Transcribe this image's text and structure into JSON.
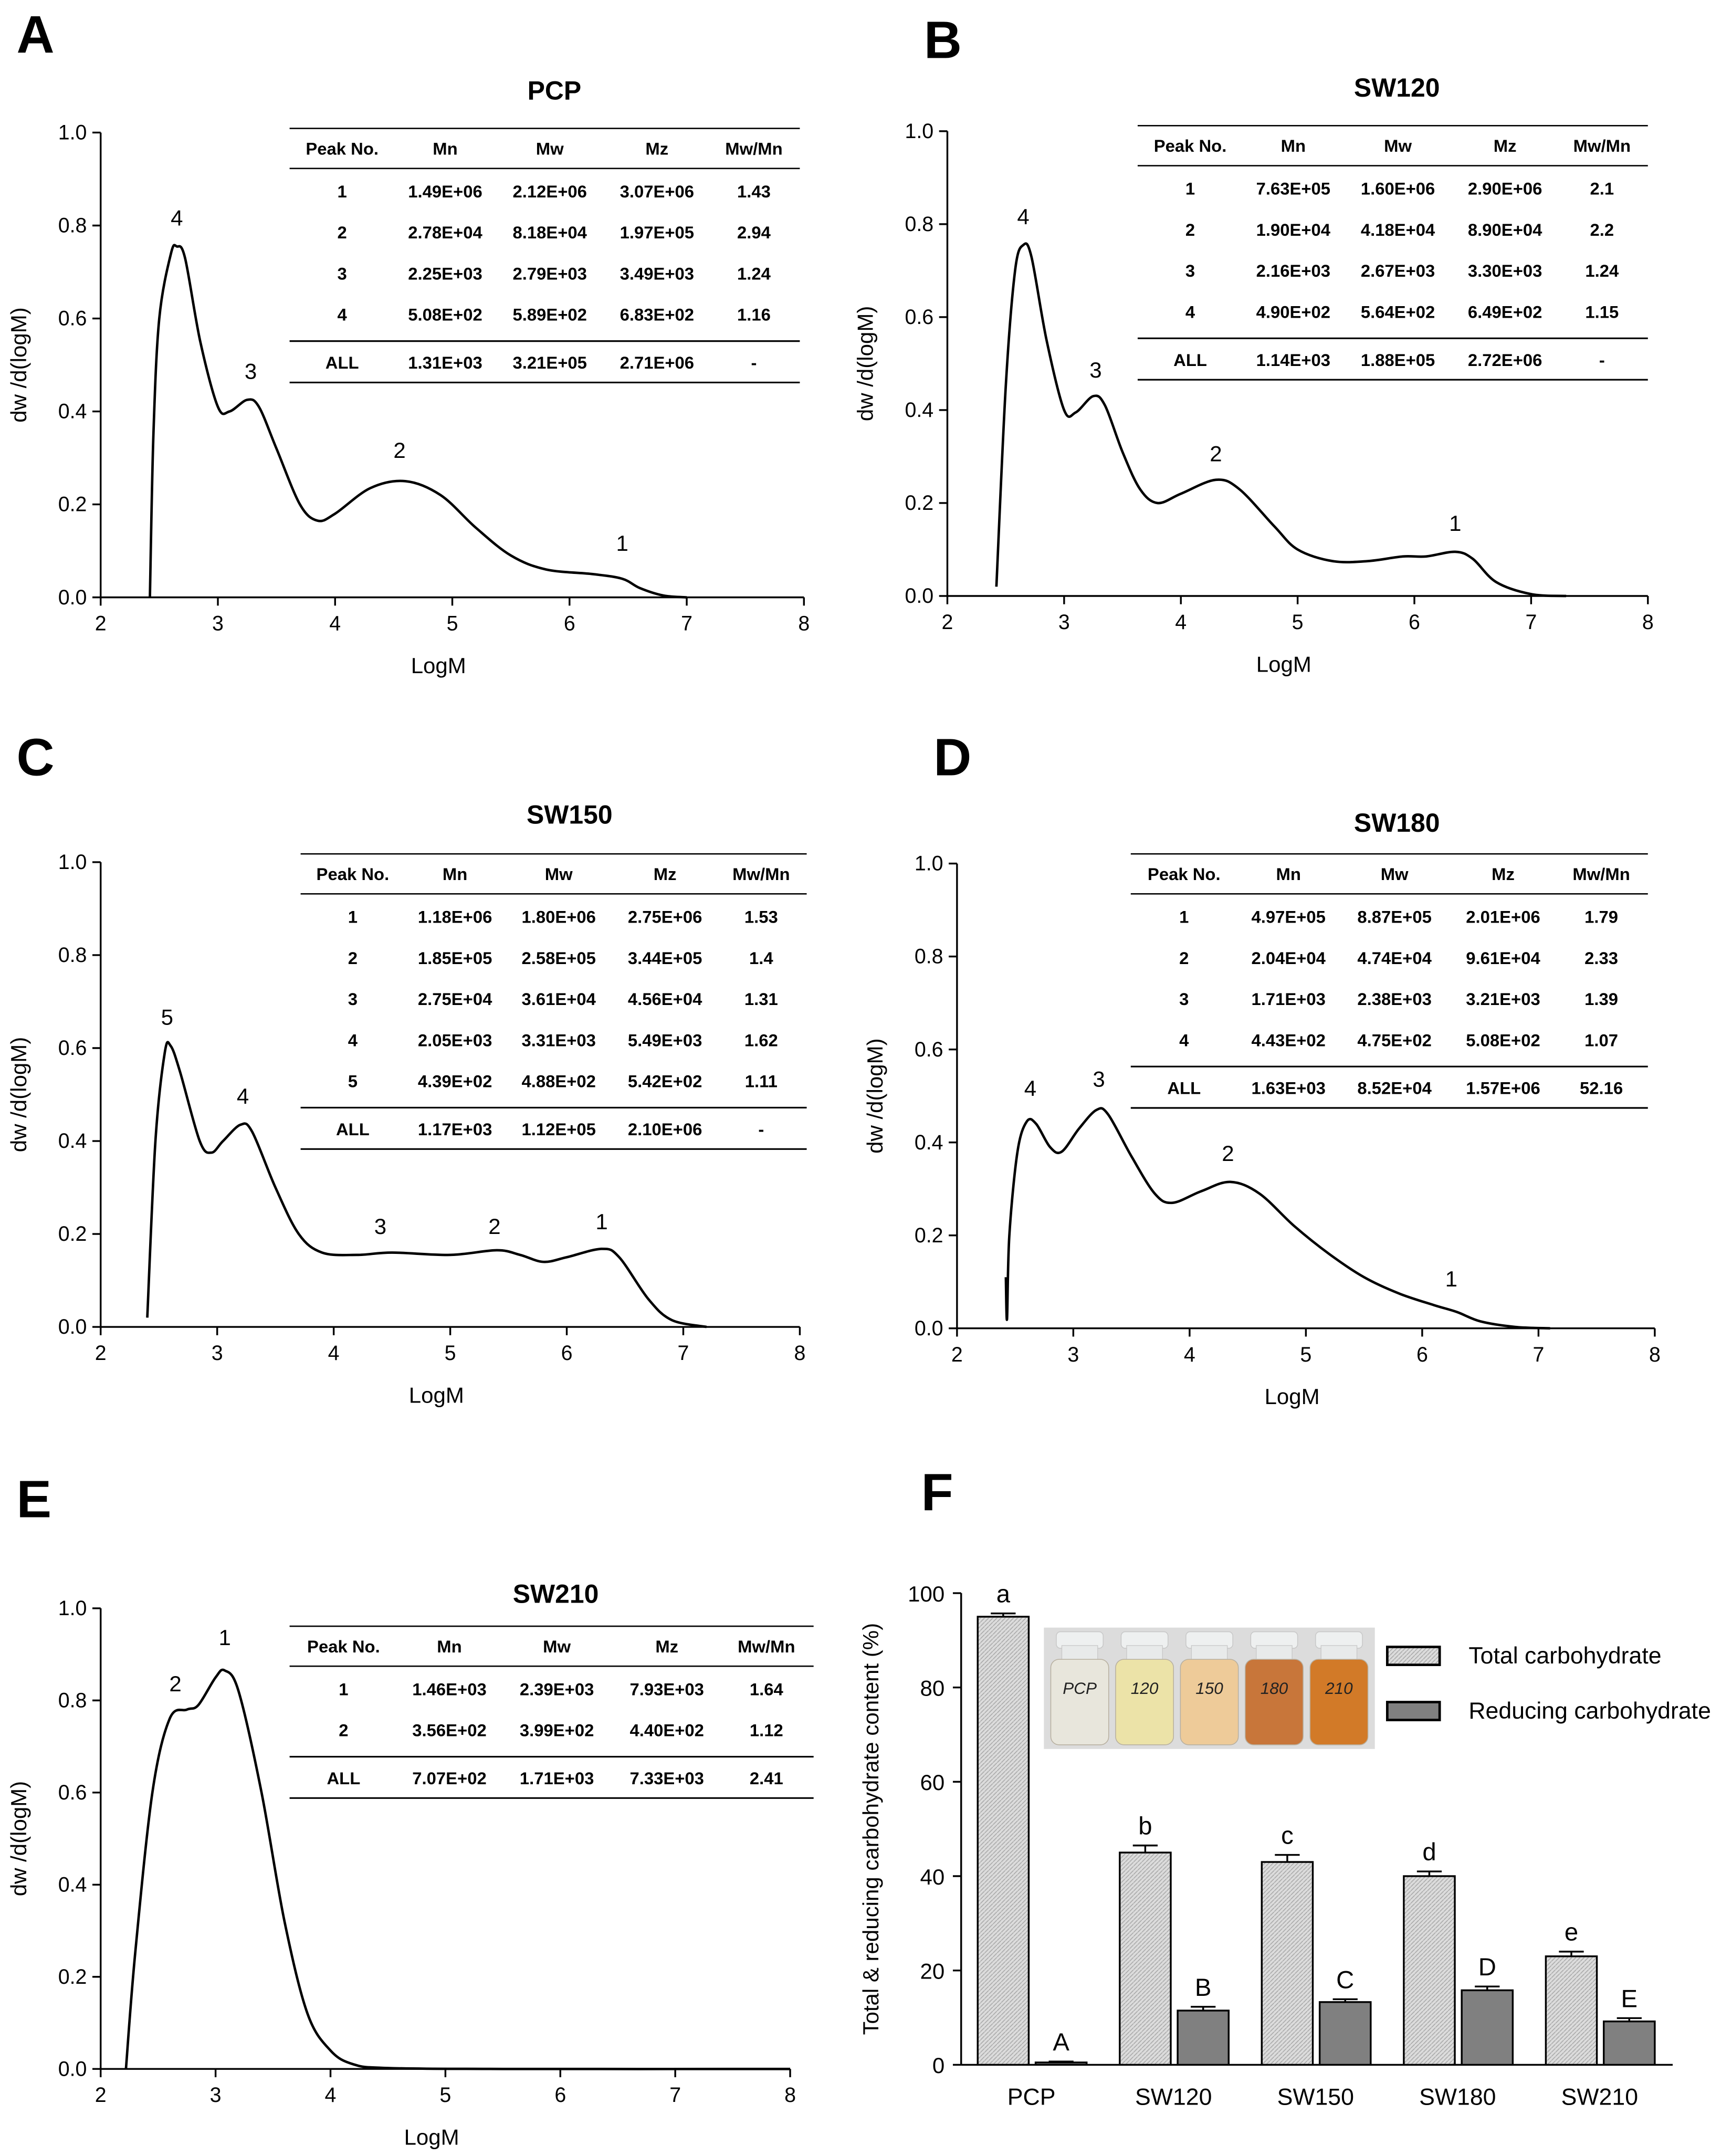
{
  "chart_data": [
    {
      "panel": "A",
      "type": "line",
      "title": "PCP",
      "xlabel": "LogM",
      "ylabel": "dw /d(logM)",
      "xlim": [
        2,
        8
      ],
      "ylim": [
        0,
        1.0
      ],
      "xticks": [
        "2",
        "3",
        "4",
        "5",
        "6",
        "7",
        "8"
      ],
      "yticks": [
        "0.0",
        "0.2",
        "0.4",
        "0.6",
        "0.8",
        "1.0"
      ],
      "points": [
        [
          2.42,
          0
        ],
        [
          2.45,
          0.35
        ],
        [
          2.5,
          0.6
        ],
        [
          2.6,
          0.74
        ],
        [
          2.65,
          0.755
        ],
        [
          2.72,
          0.73
        ],
        [
          2.85,
          0.55
        ],
        [
          3.0,
          0.41
        ],
        [
          3.1,
          0.4
        ],
        [
          3.25,
          0.425
        ],
        [
          3.35,
          0.41
        ],
        [
          3.5,
          0.32
        ],
        [
          3.7,
          0.2
        ],
        [
          3.85,
          0.165
        ],
        [
          4.0,
          0.18
        ],
        [
          4.3,
          0.235
        ],
        [
          4.6,
          0.25
        ],
        [
          4.9,
          0.22
        ],
        [
          5.2,
          0.15
        ],
        [
          5.5,
          0.09
        ],
        [
          5.8,
          0.06
        ],
        [
          6.2,
          0.05
        ],
        [
          6.45,
          0.04
        ],
        [
          6.6,
          0.02
        ],
        [
          6.8,
          0.004
        ],
        [
          7.0,
          0
        ]
      ],
      "peak_labels": [
        {
          "text": "4",
          "x": 2.65,
          "y": 0.8
        },
        {
          "text": "3",
          "x": 3.28,
          "y": 0.47
        },
        {
          "text": "2",
          "x": 4.55,
          "y": 0.3
        },
        {
          "text": "1",
          "x": 6.45,
          "y": 0.1
        }
      ],
      "table": {
        "headers": [
          "Peak No.",
          "Mn",
          "Mw",
          "Mz",
          "Mw/Mn"
        ],
        "rows": [
          [
            "1",
            "1.49E+06",
            "2.12E+06",
            "3.07E+06",
            "1.43"
          ],
          [
            "2",
            "2.78E+04",
            "8.18E+04",
            "1.97E+05",
            "2.94"
          ],
          [
            "3",
            "2.25E+03",
            "2.79E+03",
            "3.49E+03",
            "1.24"
          ],
          [
            "4",
            "5.08E+02",
            "5.89E+02",
            "6.83E+02",
            "1.16"
          ]
        ],
        "total": [
          "ALL",
          "1.31E+03",
          "3.21E+05",
          "2.71E+06",
          "-"
        ]
      }
    },
    {
      "panel": "B",
      "type": "line",
      "title": "SW120",
      "xlabel": "LogM",
      "ylabel": "dw /d(logM)",
      "xlim": [
        2,
        8
      ],
      "ylim": [
        0,
        1.0
      ],
      "xticks": [
        "2",
        "3",
        "4",
        "5",
        "6",
        "7",
        "8"
      ],
      "yticks": [
        "0.0",
        "0.2",
        "0.4",
        "0.6",
        "0.8",
        "1.0"
      ],
      "points": [
        [
          2.42,
          0.02
        ],
        [
          2.5,
          0.45
        ],
        [
          2.58,
          0.7
        ],
        [
          2.65,
          0.755
        ],
        [
          2.72,
          0.73
        ],
        [
          2.85,
          0.55
        ],
        [
          3.0,
          0.4
        ],
        [
          3.1,
          0.395
        ],
        [
          3.25,
          0.43
        ],
        [
          3.35,
          0.41
        ],
        [
          3.5,
          0.31
        ],
        [
          3.65,
          0.23
        ],
        [
          3.8,
          0.2
        ],
        [
          4.0,
          0.22
        ],
        [
          4.3,
          0.25
        ],
        [
          4.5,
          0.23
        ],
        [
          4.8,
          0.15
        ],
        [
          5.0,
          0.1
        ],
        [
          5.3,
          0.075
        ],
        [
          5.6,
          0.075
        ],
        [
          5.9,
          0.085
        ],
        [
          6.1,
          0.085
        ],
        [
          6.35,
          0.095
        ],
        [
          6.5,
          0.08
        ],
        [
          6.7,
          0.03
        ],
        [
          7.0,
          0.004
        ],
        [
          7.3,
          0
        ]
      ],
      "peak_labels": [
        {
          "text": "4",
          "x": 2.65,
          "y": 0.8
        },
        {
          "text": "3",
          "x": 3.27,
          "y": 0.47
        },
        {
          "text": "2",
          "x": 4.3,
          "y": 0.29
        },
        {
          "text": "1",
          "x": 6.35,
          "y": 0.14
        }
      ],
      "table": {
        "headers": [
          "Peak No.",
          "Mn",
          "Mw",
          "Mz",
          "Mw/Mn"
        ],
        "rows": [
          [
            "1",
            "7.63E+05",
            "1.60E+06",
            "2.90E+06",
            "2.1"
          ],
          [
            "2",
            "1.90E+04",
            "4.18E+04",
            "8.90E+04",
            "2.2"
          ],
          [
            "3",
            "2.16E+03",
            "2.67E+03",
            "3.30E+03",
            "1.24"
          ],
          [
            "4",
            "4.90E+02",
            "5.64E+02",
            "6.49E+02",
            "1.15"
          ]
        ],
        "total": [
          "ALL",
          "1.14E+03",
          "1.88E+05",
          "2.72E+06",
          "-"
        ]
      }
    },
    {
      "panel": "C",
      "type": "line",
      "title": "SW150",
      "xlabel": "LogM",
      "ylabel": "dw /d(logM)",
      "xlim": [
        2,
        8
      ],
      "ylim": [
        0,
        1.0
      ],
      "xticks": [
        "2",
        "3",
        "4",
        "5",
        "6",
        "7",
        "8"
      ],
      "yticks": [
        "0.0",
        "0.2",
        "0.4",
        "0.6",
        "0.8",
        "1.0"
      ],
      "points": [
        [
          2.4,
          0.02
        ],
        [
          2.47,
          0.4
        ],
        [
          2.55,
          0.59
        ],
        [
          2.6,
          0.605
        ],
        [
          2.68,
          0.55
        ],
        [
          2.85,
          0.4
        ],
        [
          2.95,
          0.375
        ],
        [
          3.05,
          0.4
        ],
        [
          3.2,
          0.435
        ],
        [
          3.3,
          0.42
        ],
        [
          3.5,
          0.3
        ],
        [
          3.7,
          0.2
        ],
        [
          3.9,
          0.16
        ],
        [
          4.2,
          0.155
        ],
        [
          4.5,
          0.16
        ],
        [
          5.0,
          0.155
        ],
        [
          5.4,
          0.165
        ],
        [
          5.6,
          0.155
        ],
        [
          5.8,
          0.14
        ],
        [
          6.0,
          0.15
        ],
        [
          6.3,
          0.168
        ],
        [
          6.45,
          0.15
        ],
        [
          6.7,
          0.06
        ],
        [
          6.9,
          0.015
        ],
        [
          7.2,
          0
        ]
      ],
      "peak_labels": [
        {
          "text": "5",
          "x": 2.57,
          "y": 0.65
        },
        {
          "text": "4",
          "x": 3.22,
          "y": 0.48
        },
        {
          "text": "3",
          "x": 4.4,
          "y": 0.2
        },
        {
          "text": "2",
          "x": 5.38,
          "y": 0.2
        },
        {
          "text": "1",
          "x": 6.3,
          "y": 0.21
        }
      ],
      "table": {
        "headers": [
          "Peak No.",
          "Mn",
          "Mw",
          "Mz",
          "Mw/Mn"
        ],
        "rows": [
          [
            "1",
            "1.18E+06",
            "1.80E+06",
            "2.75E+06",
            "1.53"
          ],
          [
            "2",
            "1.85E+05",
            "2.58E+05",
            "3.44E+05",
            "1.4"
          ],
          [
            "3",
            "2.75E+04",
            "3.61E+04",
            "4.56E+04",
            "1.31"
          ],
          [
            "4",
            "2.05E+03",
            "3.31E+03",
            "5.49E+03",
            "1.62"
          ],
          [
            "5",
            "4.39E+02",
            "4.88E+02",
            "5.42E+02",
            "1.11"
          ]
        ],
        "total": [
          "ALL",
          "1.17E+03",
          "1.12E+05",
          "2.10E+06",
          "-"
        ]
      }
    },
    {
      "panel": "D",
      "type": "line",
      "title": "SW180",
      "xlabel": "LogM",
      "ylabel": "dw /d(logM)",
      "xlim": [
        2,
        8
      ],
      "ylim": [
        0,
        1.0
      ],
      "xticks": [
        "2",
        "3",
        "4",
        "5",
        "6",
        "7",
        "8"
      ],
      "yticks": [
        "0.0",
        "0.2",
        "0.4",
        "0.6",
        "0.8",
        "1.0"
      ],
      "points": [
        [
          2.42,
          0.11
        ],
        [
          2.43,
          0.02
        ],
        [
          2.45,
          0.2
        ],
        [
          2.52,
          0.38
        ],
        [
          2.6,
          0.445
        ],
        [
          2.68,
          0.44
        ],
        [
          2.8,
          0.39
        ],
        [
          2.9,
          0.38
        ],
        [
          3.05,
          0.43
        ],
        [
          3.2,
          0.47
        ],
        [
          3.3,
          0.46
        ],
        [
          3.5,
          0.37
        ],
        [
          3.7,
          0.29
        ],
        [
          3.85,
          0.27
        ],
        [
          4.1,
          0.295
        ],
        [
          4.35,
          0.315
        ],
        [
          4.6,
          0.29
        ],
        [
          4.9,
          0.22
        ],
        [
          5.2,
          0.16
        ],
        [
          5.5,
          0.11
        ],
        [
          5.8,
          0.075
        ],
        [
          6.1,
          0.05
        ],
        [
          6.3,
          0.035
        ],
        [
          6.5,
          0.015
        ],
        [
          6.8,
          0.003
        ],
        [
          7.1,
          0
        ]
      ],
      "peak_labels": [
        {
          "text": "4",
          "x": 2.63,
          "y": 0.5
        },
        {
          "text": "3",
          "x": 3.22,
          "y": 0.52
        },
        {
          "text": "2",
          "x": 4.33,
          "y": 0.36
        },
        {
          "text": "1",
          "x": 6.25,
          "y": 0.09
        }
      ],
      "table": {
        "headers": [
          "Peak No.",
          "Mn",
          "Mw",
          "Mz",
          "Mw/Mn"
        ],
        "rows": [
          [
            "1",
            "4.97E+05",
            "8.87E+05",
            "2.01E+06",
            "1.79"
          ],
          [
            "2",
            "2.04E+04",
            "4.74E+04",
            "9.61E+04",
            "2.33"
          ],
          [
            "3",
            "1.71E+03",
            "2.38E+03",
            "3.21E+03",
            "1.39"
          ],
          [
            "4",
            "4.43E+02",
            "4.75E+02",
            "5.08E+02",
            "1.07"
          ]
        ],
        "total": [
          "ALL",
          "1.63E+03",
          "8.52E+04",
          "1.57E+06",
          "52.16"
        ]
      }
    },
    {
      "panel": "E",
      "type": "line",
      "title": "SW210",
      "xlabel": "LogM",
      "ylabel": "dw /d(logM)",
      "xlim": [
        2,
        8
      ],
      "ylim": [
        0,
        1.0
      ],
      "xticks": [
        "2",
        "3",
        "4",
        "5",
        "6",
        "7",
        "8"
      ],
      "yticks": [
        "0.0",
        "0.2",
        "0.4",
        "0.6",
        "0.8",
        "1.0"
      ],
      "points": [
        [
          2.22,
          0
        ],
        [
          2.3,
          0.25
        ],
        [
          2.45,
          0.6
        ],
        [
          2.6,
          0.76
        ],
        [
          2.75,
          0.78
        ],
        [
          2.85,
          0.79
        ],
        [
          3.0,
          0.85
        ],
        [
          3.08,
          0.865
        ],
        [
          3.2,
          0.82
        ],
        [
          3.4,
          0.6
        ],
        [
          3.6,
          0.32
        ],
        [
          3.8,
          0.12
        ],
        [
          4.0,
          0.04
        ],
        [
          4.2,
          0.01
        ],
        [
          4.5,
          0.002
        ],
        [
          5.5,
          0
        ],
        [
          8,
          0
        ]
      ],
      "peak_labels": [
        {
          "text": "2",
          "x": 2.65,
          "y": 0.82
        },
        {
          "text": "1",
          "x": 3.08,
          "y": 0.92
        }
      ],
      "table": {
        "headers": [
          "Peak No.",
          "Mn",
          "Mw",
          "Mz",
          "Mw/Mn"
        ],
        "rows": [
          [
            "1",
            "1.46E+03",
            "2.39E+03",
            "7.93E+03",
            "1.64"
          ],
          [
            "2",
            "3.56E+02",
            "3.99E+02",
            "4.40E+02",
            "1.12"
          ]
        ],
        "total": [
          "ALL",
          "7.07E+02",
          "1.71E+03",
          "7.33E+03",
          "2.41"
        ]
      }
    },
    {
      "panel": "F",
      "type": "bar",
      "title": "",
      "xlabel": "",
      "ylabel": "Total & reducing carbohydrate content (%)",
      "ylim": [
        0,
        100
      ],
      "yticks": [
        "0",
        "20",
        "40",
        "60",
        "80",
        "100"
      ],
      "categories": [
        "PCP",
        "SW120",
        "SW150",
        "SW180",
        "SW210"
      ],
      "series": [
        {
          "name": "Total carbohydrate",
          "values": [
            95,
            45,
            43,
            40,
            23
          ],
          "errors": [
            0.7,
            1.5,
            1.5,
            1.0,
            1.0
          ],
          "letters": [
            "a",
            "b",
            "c",
            "d",
            "e"
          ],
          "color": "#d4d4d4"
        },
        {
          "name": "Reducing carbohydrate",
          "values": [
            0.5,
            11.5,
            13.3,
            15.8,
            9.2
          ],
          "errors": [
            0.2,
            0.8,
            0.6,
            0.8,
            0.7
          ],
          "letters": [
            "A",
            "B",
            "C",
            "D",
            "E"
          ],
          "color": "#808080"
        }
      ],
      "legend": "top-right",
      "inset_photo": {
        "vial_labels": [
          "PCP",
          "120",
          "150",
          "180",
          "210"
        ],
        "vial_colors": [
          "#e8e6dc",
          "#ece3a8",
          "#eecb99",
          "#c8763a",
          "#d27a28"
        ]
      }
    }
  ]
}
